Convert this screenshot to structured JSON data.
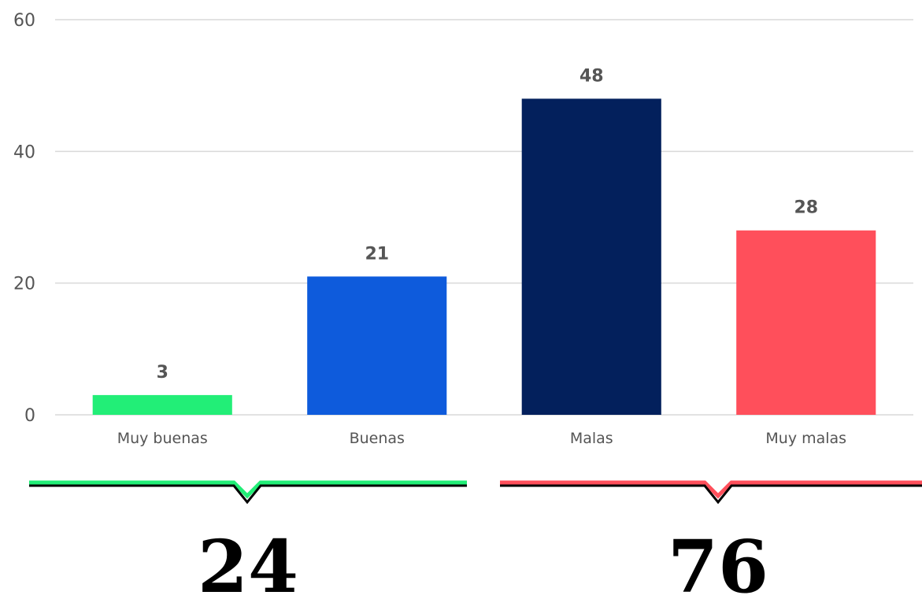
{
  "chart_data": {
    "type": "bar",
    "categories": [
      "Muy buenas",
      "Buenas",
      "Malas",
      "Muy malas"
    ],
    "values": [
      3,
      21,
      48,
      28
    ],
    "data_labels": [
      "3",
      "21",
      "48",
      "28"
    ],
    "colors": [
      "#22ee77",
      "#0e5bdc",
      "#03205c",
      "#ff4f5b"
    ],
    "yticks": [
      0,
      20,
      40,
      60
    ],
    "ylim": [
      0,
      60
    ],
    "grid": true,
    "title": "",
    "xlabel": "",
    "ylabel": ""
  },
  "groups": [
    {
      "total": "24",
      "bracket_color": "#22ee77",
      "covers": [
        "Muy buenas",
        "Buenas"
      ]
    },
    {
      "total": "76",
      "bracket_color": "#ff4f5b",
      "covers": [
        "Malas",
        "Muy malas"
      ]
    }
  ]
}
